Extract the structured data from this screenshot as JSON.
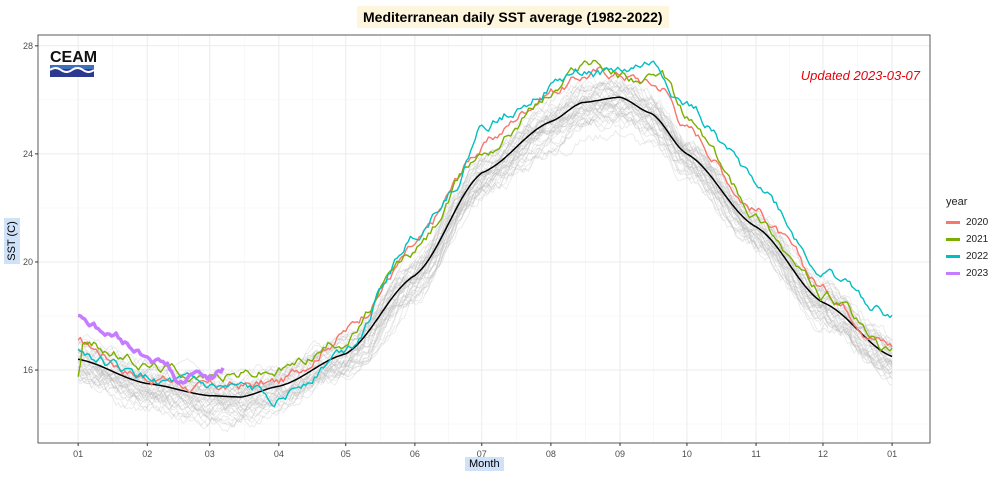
{
  "chart_data": {
    "type": "line",
    "title": "Mediterranean daily SST average (1982-2022)",
    "xlabel": "Month",
    "ylabel": "SST (C)",
    "x_unit": "day of year",
    "x_ticks": [
      {
        "day": 1,
        "label": "01"
      },
      {
        "day": 32,
        "label": "02"
      },
      {
        "day": 60,
        "label": "03"
      },
      {
        "day": 91,
        "label": "04"
      },
      {
        "day": 121,
        "label": "05"
      },
      {
        "day": 152,
        "label": "06"
      },
      {
        "day": 182,
        "label": "07"
      },
      {
        "day": 213,
        "label": "08"
      },
      {
        "day": 244,
        "label": "09"
      },
      {
        "day": 274,
        "label": "10"
      },
      {
        "day": 305,
        "label": "11"
      },
      {
        "day": 335,
        "label": "12"
      },
      {
        "day": 366,
        "label": "01"
      }
    ],
    "xlim": [
      -17,
      383
    ],
    "y_ticks": [
      16,
      20,
      24,
      28
    ],
    "ylim": [
      13.3,
      28.4
    ],
    "grid": true,
    "legend_title": "year",
    "legend_position": "right",
    "annotation": "Updated 2023-03-07",
    "annotation_color": "#e8000b",
    "background_years_color": "#bbbbbb",
    "mean": {
      "color": "#000000",
      "x": [
        1,
        32,
        60,
        74,
        91,
        121,
        152,
        182,
        213,
        227,
        244,
        258,
        274,
        305,
        335,
        366
      ],
      "y": [
        16.4,
        15.5,
        15.05,
        15.0,
        15.4,
        16.6,
        19.5,
        23.3,
        25.2,
        25.9,
        26.1,
        25.5,
        24.0,
        21.3,
        18.5,
        16.5
      ]
    },
    "series": [
      {
        "name": "2020",
        "color": "#f8766d",
        "x": [
          1,
          32,
          60,
          91,
          121,
          152,
          182,
          213,
          232,
          244,
          263,
          274,
          305,
          335,
          366
        ],
        "y": [
          17.0,
          15.8,
          15.3,
          15.5,
          17.5,
          20.5,
          24.3,
          26.4,
          27.0,
          27.0,
          26.5,
          25.0,
          22.0,
          19.0,
          17.0
        ]
      },
      {
        "name": "2021",
        "color": "#7cae00",
        "x": [
          1,
          3,
          32,
          60,
          91,
          121,
          152,
          182,
          213,
          229,
          244,
          263,
          274,
          305,
          335,
          366
        ],
        "y": [
          15.8,
          17.0,
          16.2,
          15.8,
          16.0,
          17.2,
          20.4,
          24.1,
          26.3,
          27.5,
          27.0,
          26.7,
          25.3,
          21.8,
          18.8,
          16.6
        ]
      },
      {
        "name": "2022",
        "color": "#00bfc4",
        "x": [
          1,
          32,
          60,
          91,
          121,
          152,
          171,
          182,
          213,
          227,
          244,
          258,
          274,
          305,
          335,
          366
        ],
        "y": [
          16.7,
          15.6,
          15.2,
          15.0,
          16.8,
          21.0,
          23.0,
          25.0,
          26.6,
          27.0,
          27.0,
          27.3,
          25.8,
          23.0,
          19.6,
          18.1
        ]
      },
      {
        "name": "2023",
        "color": "#c77cff",
        "x": [
          1,
          15,
          32,
          41,
          46,
          56,
          60,
          66
        ],
        "y": [
          18.1,
          17.3,
          16.6,
          16.2,
          15.5,
          15.8,
          15.8,
          16.0
        ]
      }
    ]
  },
  "logo": {
    "text": "CEAM"
  }
}
